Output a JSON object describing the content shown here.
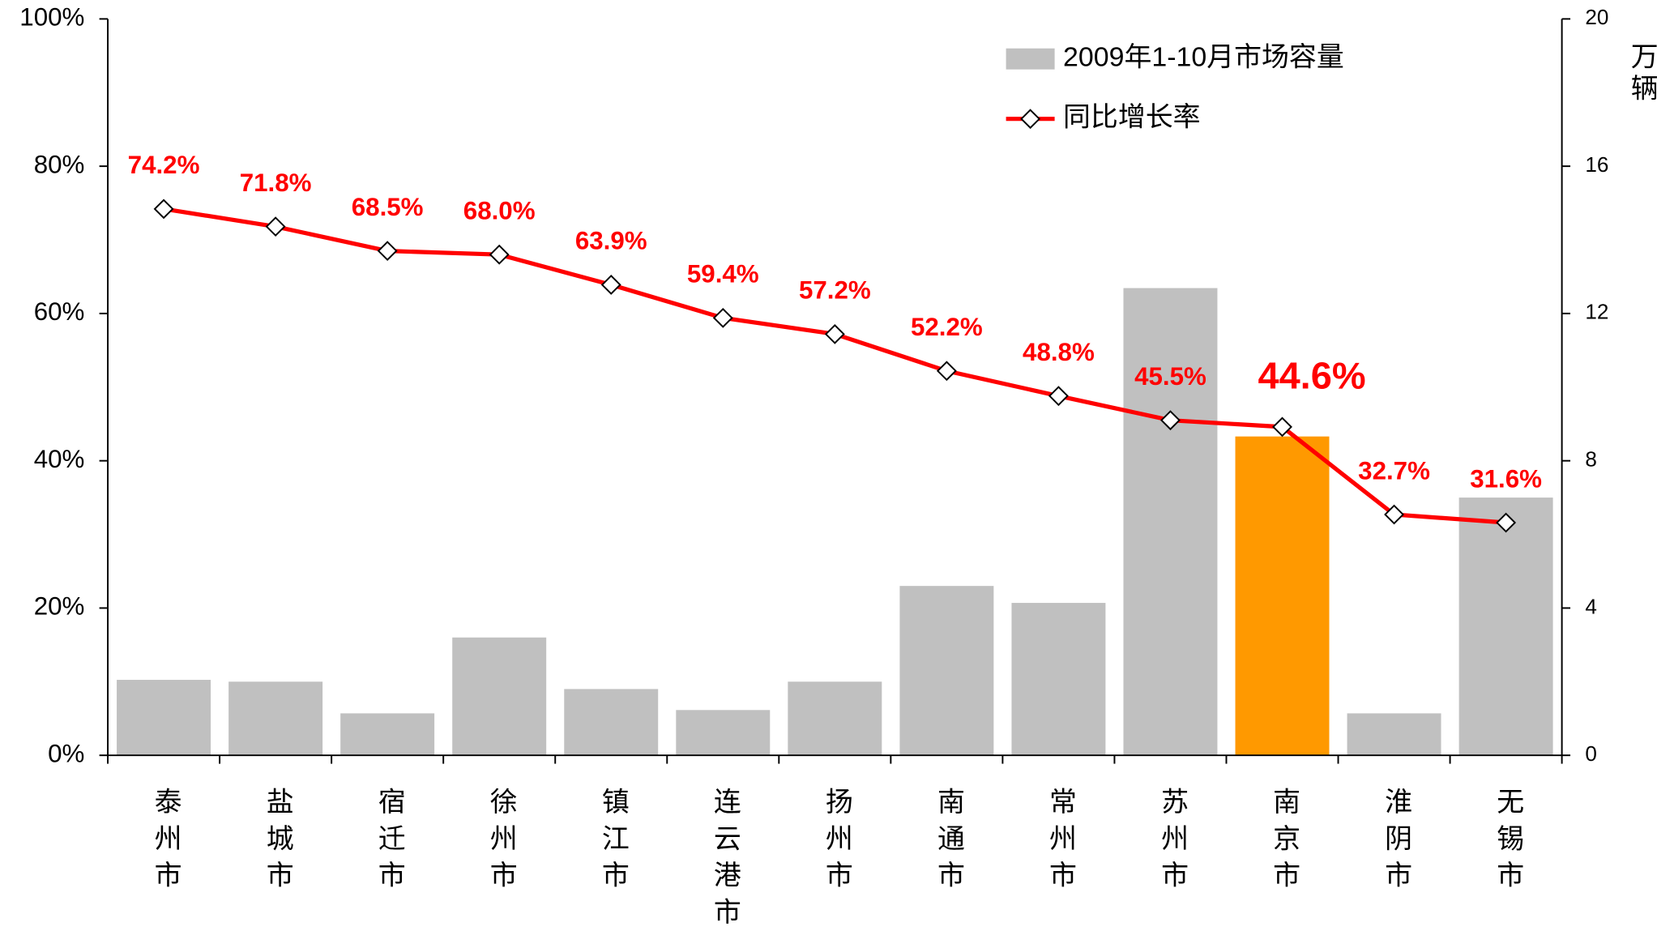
{
  "chart_data": {
    "type": "bar_line",
    "categories": [
      "泰州市",
      "盐城市",
      "宿迁市",
      "徐州市",
      "镇江市",
      "连云港市",
      "扬州市",
      "南通市",
      "常州市",
      "苏州市",
      "南京市",
      "淮阴市",
      "无锡市"
    ],
    "series": [
      {
        "name": "2009年1-10月市场容量",
        "type": "bar",
        "axis": "y2",
        "color": "#c0c0c0",
        "colors": [
          "#c0c0c0",
          "#c0c0c0",
          "#c0c0c0",
          "#c0c0c0",
          "#c0c0c0",
          "#c0c0c0",
          "#c0c0c0",
          "#c0c0c0",
          "#c0c0c0",
          "#c0c0c0",
          "#ff9900",
          "#c0c0c0",
          "#c0c0c0"
        ],
        "values": [
          2.05,
          2.0,
          1.14,
          3.2,
          1.8,
          1.23,
          2.0,
          4.6,
          4.14,
          12.69,
          8.66,
          1.14,
          7.0
        ]
      },
      {
        "name": "同比增长率",
        "type": "line",
        "color": "#ff0000",
        "values": [
          74.2,
          71.8,
          68.5,
          68.0,
          63.9,
          59.4,
          57.2,
          52.2,
          48.8,
          45.5,
          44.6,
          32.7,
          31.6
        ],
        "value_labels": [
          "74.2%",
          "71.8%",
          "68.5%",
          "68.0%",
          "63.9%",
          "59.4%",
          "57.2%",
          "52.2%",
          "48.8%",
          "45.5%",
          "44.6%",
          "32.7%",
          "31.6%"
        ]
      }
    ],
    "ylim": [
      0,
      100
    ],
    "yticks": [
      {
        "value": 0,
        "label": "0%"
      },
      {
        "value": 20,
        "label": "20%"
      },
      {
        "value": 40,
        "label": "40%"
      },
      {
        "value": 60,
        "label": "60%"
      },
      {
        "value": 80,
        "label": "80%"
      },
      {
        "value": 100,
        "label": "100%"
      }
    ],
    "y2lim": [
      0,
      20
    ],
    "y2ticks": [
      0,
      4,
      8,
      12,
      16,
      20
    ],
    "y2label": "万辆",
    "legend": "upper right"
  }
}
